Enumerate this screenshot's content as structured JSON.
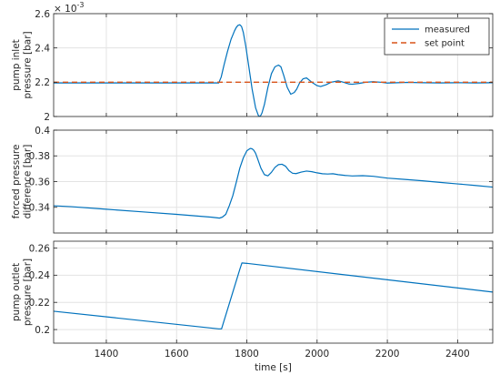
{
  "chart_data": [
    {
      "type": "line",
      "ylabel_lines": [
        "pump inlet",
        "pressure [bar]"
      ],
      "y_exponent_base": "× 10",
      "y_exponent_power": "-3",
      "xlim": [
        1250,
        2500
      ],
      "ylim": [
        2.0,
        2.6
      ],
      "yticks": [
        2.0,
        2.2,
        2.4,
        2.6
      ],
      "ytick_labels": [
        "2",
        "2.2",
        "2.4",
        "2.6"
      ],
      "grid": true,
      "legend_position": "top-right",
      "series": [
        {
          "name": "measured",
          "color": "#0072bd",
          "style": "solid",
          "x": [
            1250,
            1720,
            1727,
            1735,
            1745,
            1755,
            1765,
            1770,
            1775,
            1780,
            1785,
            1790,
            1797,
            1805,
            1815,
            1825,
            1833,
            1838,
            1843,
            1850,
            1860,
            1870,
            1880,
            1890,
            1897,
            1905,
            1915,
            1925,
            1935,
            1942,
            1950,
            1960,
            1970,
            1985,
            2000,
            2010,
            2025,
            2040,
            2060,
            2075,
            2090,
            2100,
            2120,
            2140,
            2160,
            2180,
            2200,
            2230,
            2260,
            2300,
            2350,
            2400,
            2450,
            2500
          ],
          "y": [
            2.196,
            2.196,
            2.23,
            2.3,
            2.38,
            2.45,
            2.5,
            2.52,
            2.532,
            2.535,
            2.525,
            2.49,
            2.41,
            2.3,
            2.16,
            2.05,
            2.005,
            2.0,
            2.02,
            2.07,
            2.17,
            2.25,
            2.29,
            2.3,
            2.29,
            2.24,
            2.17,
            2.13,
            2.14,
            2.16,
            2.195,
            2.22,
            2.225,
            2.2,
            2.18,
            2.175,
            2.185,
            2.2,
            2.208,
            2.2,
            2.19,
            2.188,
            2.193,
            2.2,
            2.203,
            2.2,
            2.195,
            2.197,
            2.199,
            2.197,
            2.196,
            2.197,
            2.196,
            2.197
          ]
        },
        {
          "name": "set point",
          "color": "#d95319",
          "style": "dashed",
          "x": [
            1250,
            2500
          ],
          "y": [
            2.2,
            2.2
          ]
        }
      ]
    },
    {
      "type": "line",
      "ylabel_lines": [
        "forced pressure",
        "difference [bar]"
      ],
      "xlim": [
        1250,
        2500
      ],
      "ylim": [
        0.32,
        0.4
      ],
      "yticks": [
        0.34,
        0.36,
        0.38,
        0.4
      ],
      "ytick_labels": [
        "0.34",
        "0.36",
        "0.38",
        "0.4"
      ],
      "grid": true,
      "series": [
        {
          "color": "#0072bd",
          "style": "solid",
          "x": [
            1250,
            1300,
            1400,
            1500,
            1600,
            1700,
            1722,
            1730,
            1740,
            1750,
            1760,
            1770,
            1780,
            1790,
            1800,
            1810,
            1815,
            1820,
            1825,
            1830,
            1840,
            1850,
            1860,
            1870,
            1880,
            1890,
            1900,
            1910,
            1920,
            1930,
            1940,
            1955,
            1970,
            1985,
            2000,
            2015,
            2030,
            2045,
            2060,
            2080,
            2100,
            2130,
            2160,
            2200,
            2250,
            2300,
            2350,
            2400,
            2450,
            2500
          ],
          "y": [
            0.3412,
            0.3405,
            0.3385,
            0.3365,
            0.3345,
            0.3323,
            0.3316,
            0.3323,
            0.3345,
            0.3412,
            0.349,
            0.3595,
            0.3705,
            0.3785,
            0.384,
            0.3858,
            0.3855,
            0.3843,
            0.382,
            0.3783,
            0.3705,
            0.3654,
            0.3645,
            0.3672,
            0.371,
            0.3732,
            0.3735,
            0.372,
            0.3685,
            0.3665,
            0.3662,
            0.3674,
            0.3682,
            0.3677,
            0.3668,
            0.3661,
            0.3659,
            0.3661,
            0.3654,
            0.3648,
            0.3644,
            0.3646,
            0.3641,
            0.3627,
            0.3617,
            0.3606,
            0.3594,
            0.3582,
            0.357,
            0.3557
          ]
        }
      ]
    },
    {
      "type": "line",
      "ylabel_lines": [
        "pump outlet",
        "pressure [bar]"
      ],
      "xlabel": "time [s]",
      "xlim": [
        1250,
        2500
      ],
      "xticks": [
        1400,
        1600,
        1800,
        2000,
        2200,
        2400
      ],
      "xtick_labels": [
        "1400",
        "1600",
        "1800",
        "2000",
        "2200",
        "2400"
      ],
      "ylim": [
        0.19,
        0.265
      ],
      "yticks": [
        0.2,
        0.22,
        0.24,
        0.26
      ],
      "ytick_labels": [
        "0.2",
        "0.22",
        "0.24",
        "0.26"
      ],
      "grid": true,
      "series": [
        {
          "color": "#0072bd",
          "style": "solid",
          "x": [
            1250,
            1720,
            1728,
            1780,
            1786,
            1800,
            2500
          ],
          "y": [
            0.2135,
            0.2005,
            0.2005,
            0.2443,
            0.249,
            0.2487,
            0.2276
          ]
        }
      ]
    }
  ]
}
